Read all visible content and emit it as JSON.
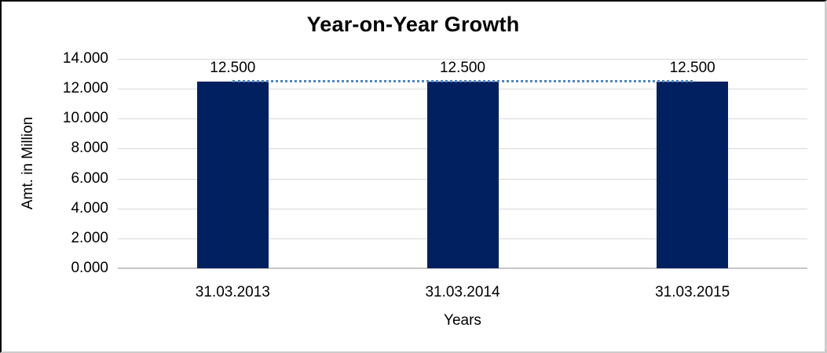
{
  "chart_data": {
    "type": "bar",
    "title": "Year-on-Year Growth",
    "xlabel": "Years",
    "ylabel": "Amt. in Million",
    "categories": [
      "31.03.2013",
      "31.03.2014",
      "31.03.2015"
    ],
    "series": [
      {
        "name": "bar-series",
        "type": "bar",
        "values": [
          12.5,
          12.5,
          12.5
        ]
      },
      {
        "name": "trend-line-series",
        "type": "line",
        "style": "dotted",
        "values": [
          12.5,
          12.5,
          12.5
        ]
      }
    ],
    "data_labels": [
      "12.500",
      "12.500",
      "12.500"
    ],
    "ylim": [
      0,
      14
    ],
    "ytick_values": [
      0,
      2,
      4,
      6,
      8,
      10,
      12,
      14
    ],
    "ytick_labels": [
      "0.000",
      "2.000",
      "4.000",
      "6.000",
      "8.000",
      "10.000",
      "12.000",
      "14.000"
    ],
    "grid": true,
    "legend": "none",
    "colors": {
      "bar": "#002060",
      "trend_line": "#4f86c6",
      "gridline": "#d9d9d9",
      "axis_line": "#c6c6c6",
      "text": "#000000"
    }
  }
}
